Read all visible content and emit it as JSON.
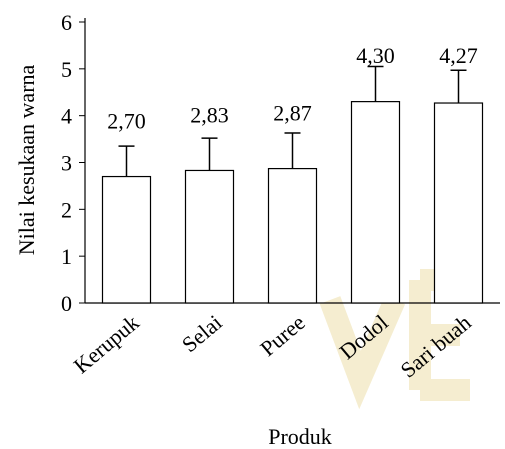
{
  "chart_data": {
    "type": "bar",
    "title": "",
    "xlabel": "Produk",
    "ylabel": "Nilai kesukaan warna",
    "categories": [
      "Kerupuk",
      "Selai",
      "Puree",
      "Dodol",
      "Sari buah"
    ],
    "values": [
      2.7,
      2.83,
      2.87,
      4.3,
      4.27
    ],
    "value_labels": [
      "2,70",
      "2,83",
      "2,87",
      "4,30",
      "4,27"
    ],
    "error_upper": [
      3.35,
      3.52,
      3.63,
      5.05,
      4.97
    ],
    "ylim": [
      0,
      6
    ],
    "yticks": [
      0,
      1,
      2,
      3,
      4,
      5,
      6
    ],
    "grid": false,
    "legend": "none",
    "colors": {
      "bar_fill": "#ffffff",
      "bar_stroke": "#000000",
      "text": "#000000"
    }
  }
}
